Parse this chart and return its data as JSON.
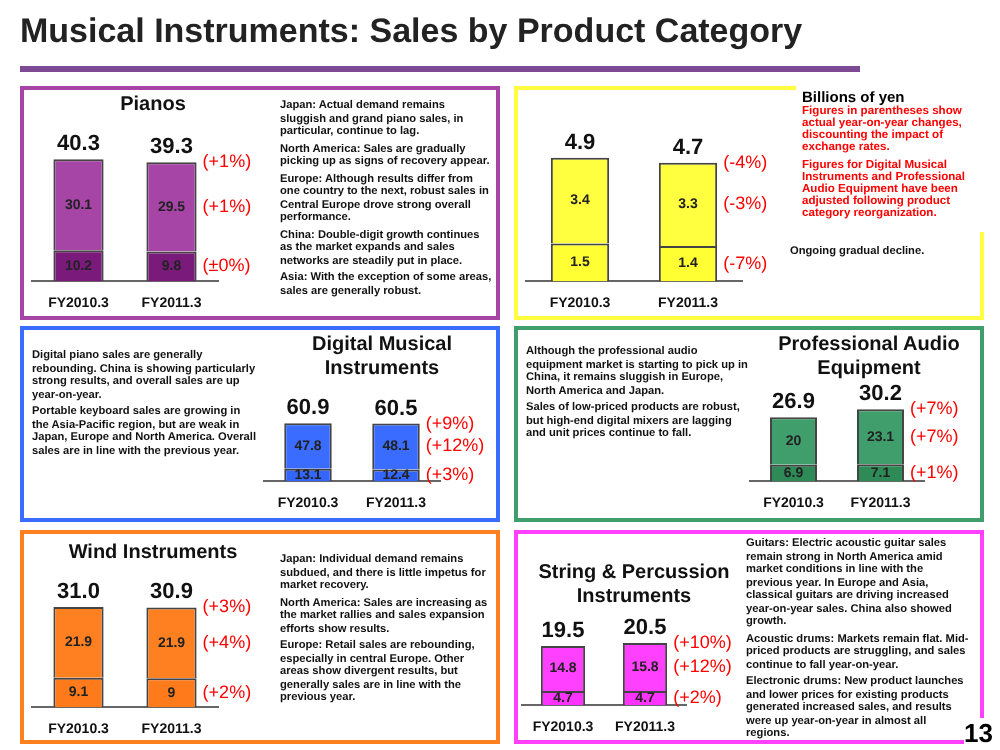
{
  "chart_data": [
    {
      "type": "other",
      "title": "Musical Instruments: Sales by Product Category",
      "subtitle": "Billions of yen",
      "annotations": [
        "Figures in parentheses show actual year-on-year changes, discounting the impact of exchange rates.",
        "Figures for Digital Musical Instruments and Professional Audio Equipment have been adjusted following product category reorganization.",
        "13"
      ]
    },
    {
      "type": "bar",
      "title": "Pianos",
      "categories": [
        "FY2010.3",
        "FY2011.3"
      ],
      "stacked": true,
      "data_labels": true,
      "tick_labels": "x",
      "totals": [
        "40.3",
        "39.3"
      ],
      "series": [
        {
          "color": "#7a1a7a",
          "values": [
            10.2,
            9.8
          ]
        },
        {
          "color": "#a645a6",
          "values": [
            30.1,
            29.5
          ]
        }
      ],
      "annotations": [
        {
          "text": "(+1%)",
          "x": "FY2011.3",
          "y": 39.3
        },
        "(+1%)",
        "(±0%)",
        "Japan: Actual demand remains sluggish and grand piano sales, in particular, continue to lag.",
        "North America: Sales are gradually picking up as signs of recovery appear.",
        "Europe: Although results differ from one country to the next, robust sales in Central Europe drove strong overall performance.",
        "China: Double-digit growth continues as the market expands and sales networks are steadily put in place.",
        "Asia: With the exception of some areas, sales are generally robust."
      ]
    },
    {
      "type": "bar",
      "categories": [
        "FY2010.3",
        "FY2011.3"
      ],
      "stacked": true,
      "data_labels": true,
      "tick_labels": "x",
      "totals": [
        "4.9",
        "4.7"
      ],
      "series": [
        {
          "color": "#ffff33",
          "values": [
            1.5,
            1.4
          ]
        },
        {
          "color": "#ffff40",
          "values": [
            3.4,
            3.3
          ]
        }
      ],
      "annotations": [
        {
          "text": "(-4%)",
          "x": "FY2011.3",
          "y": 4.7
        },
        "(-3%)",
        "(-7%)",
        "Ongoing gradual decline."
      ]
    },
    {
      "type": "bar",
      "title": "Digital Musical Instruments",
      "categories": [
        "FY2010.3",
        "FY2011.3"
      ],
      "stacked": true,
      "data_labels": true,
      "tick_labels": "x",
      "totals": [
        "60.9",
        "60.5"
      ],
      "series": [
        {
          "color": "#3366ff",
          "values": [
            13.1,
            12.4
          ]
        },
        {
          "color": "#3a6cff",
          "values": [
            47.8,
            48.1
          ]
        }
      ],
      "annotations": [
        {
          "text": "(+9%)",
          "x": "FY2011.3",
          "y": 60.5
        },
        "(+12%)",
        "(+3%)",
        "Digital piano sales are generally rebounding. China is showing particularly strong results, and overall sales are up year-on-year.",
        "Portable keyboard sales are growing in the Asia-Pacific region, but are weak in Japan, Europe and North America. Overall sales are in line with the previous year."
      ]
    },
    {
      "type": "bar",
      "title": "Professional Audio Equipment",
      "categories": [
        "FY2010.3",
        "FY2011.3"
      ],
      "stacked": true,
      "data_labels": true,
      "tick_labels": "x",
      "totals": [
        "26.9",
        "30.2"
      ],
      "series": [
        {
          "color": "#2e8b57",
          "values": [
            6.9,
            7.1
          ]
        },
        {
          "color": "#3f9e6b",
          "values": [
            20.0,
            23.1
          ]
        }
      ],
      "annotations": [
        {
          "text": "(+7%)",
          "x": "FY2011.3",
          "y": 30.2
        },
        "(+7%)",
        "(+1%)",
        "Although the professional audio equipment market is starting to pick up in China, it remains sluggish in Europe, North America and Japan.",
        "Sales of low-priced products are robust, but high-end digital mixers are lagging and unit prices continue to fall."
      ]
    },
    {
      "type": "bar",
      "title": "Wind Instruments",
      "categories": [
        "FY2010.3",
        "FY2011.3"
      ],
      "stacked": true,
      "data_labels": true,
      "tick_labels": "x",
      "totals": [
        "31.0",
        "30.9"
      ],
      "series": [
        {
          "color": "#ff7a1a",
          "values": [
            9.1,
            9.0
          ]
        },
        {
          "color": "#ff8020",
          "values": [
            21.9,
            21.9
          ]
        }
      ],
      "annotations": [
        {
          "text": "(+3%)",
          "x": "FY2011.3",
          "y": 30.9
        },
        "(+4%)",
        "(+2%)",
        "Japan: Individual demand remains subdued, and there is little impetus for market recovery.",
        "North America: Sales are increasing as the market rallies and sales expansion efforts show results.",
        "Europe: Retail sales are rebounding, especially in central Europe. Other areas show divergent results, but generally sales are in line with the previous year."
      ]
    },
    {
      "type": "bar",
      "title": "String & Percussion Instruments",
      "categories": [
        "FY2010.3",
        "FY2011.3"
      ],
      "stacked": true,
      "data_labels": true,
      "tick_labels": "x",
      "totals": [
        "19.5",
        "20.5"
      ],
      "series": [
        {
          "color": "#ff33ff",
          "values": [
            4.7,
            4.7
          ]
        },
        {
          "color": "#ff40ff",
          "values": [
            14.8,
            15.8
          ]
        }
      ],
      "annotations": [
        {
          "text": "(+10%)",
          "x": "FY2011.3",
          "y": 20.5
        },
        "(+12%)",
        "(+2%)",
        "Guitars: Electric acoustic guitar sales remain strong in North America amid market conditions in line with the previous year. In Europe and Asia, classical guitars are driving increased year-on-year sales. China also showed growth.",
        "Acoustic drums: Markets remain flat. Mid-priced products are struggling, and sales continue to fall year-on-year.",
        "Electronic drums: New product launches and lower prices for existing products generated increased sales, and results were up year-on-year in almost all regions."
      ]
    }
  ]
}
